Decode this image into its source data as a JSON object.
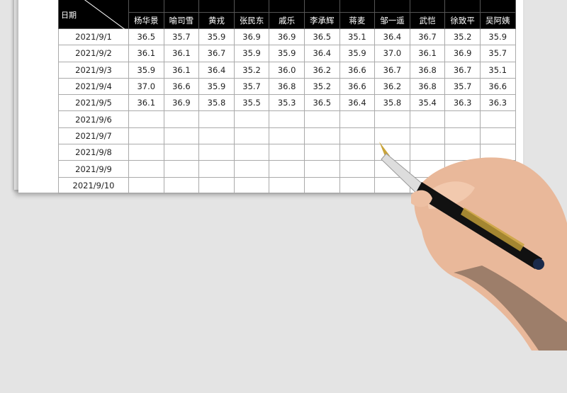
{
  "table": {
    "corner_label": "日期",
    "names": [
      "杨华景",
      "喻司雪",
      "黄戎",
      "张民东",
      "戚乐",
      "李承辉",
      "蒋麦",
      "邹一遥",
      "武恺",
      "徐致平",
      "吴阿姨"
    ],
    "rows": [
      {
        "date": "2021/9/1",
        "values": [
          "36.5",
          "35.7",
          "35.9",
          "36.9",
          "36.9",
          "36.5",
          "35.1",
          "36.4",
          "36.7",
          "35.2",
          "35.9"
        ]
      },
      {
        "date": "2021/9/2",
        "values": [
          "36.1",
          "36.1",
          "36.7",
          "35.9",
          "35.9",
          "36.4",
          "35.9",
          "37.0",
          "36.1",
          "36.9",
          "35.7"
        ]
      },
      {
        "date": "2021/9/3",
        "values": [
          "35.9",
          "36.1",
          "36.4",
          "35.2",
          "36.0",
          "36.2",
          "36.6",
          "36.7",
          "36.8",
          "36.7",
          "35.1"
        ]
      },
      {
        "date": "2021/9/4",
        "values": [
          "37.0",
          "36.6",
          "35.9",
          "35.7",
          "36.8",
          "35.2",
          "36.6",
          "36.2",
          "36.8",
          "35.7",
          "36.6"
        ]
      },
      {
        "date": "2021/9/5",
        "values": [
          "36.1",
          "36.9",
          "35.8",
          "35.5",
          "35.3",
          "36.5",
          "36.4",
          "35.8",
          "35.4",
          "36.3",
          "36.3"
        ]
      },
      {
        "date": "2021/9/6",
        "values": [
          "",
          "",
          "",
          "",
          "",
          "",
          "",
          "",
          "",
          "",
          ""
        ]
      },
      {
        "date": "2021/9/7",
        "values": [
          "",
          "",
          "",
          "",
          "",
          "",
          "",
          "",
          "",
          "",
          ""
        ]
      },
      {
        "date": "2021/9/8",
        "values": [
          "",
          "",
          "",
          "",
          "",
          "",
          "",
          "",
          "",
          "",
          ""
        ]
      },
      {
        "date": "2021/9/9",
        "values": [
          "",
          "",
          "",
          "",
          "",
          "",
          "",
          "",
          "",
          "",
          ""
        ]
      },
      {
        "date": "2021/9/10",
        "values": [
          "",
          "",
          "",
          "",
          "",
          "",
          "",
          "",
          "",
          "",
          ""
        ]
      }
    ]
  },
  "decor": {
    "illustration": "hand-holding-fountain-pen"
  }
}
